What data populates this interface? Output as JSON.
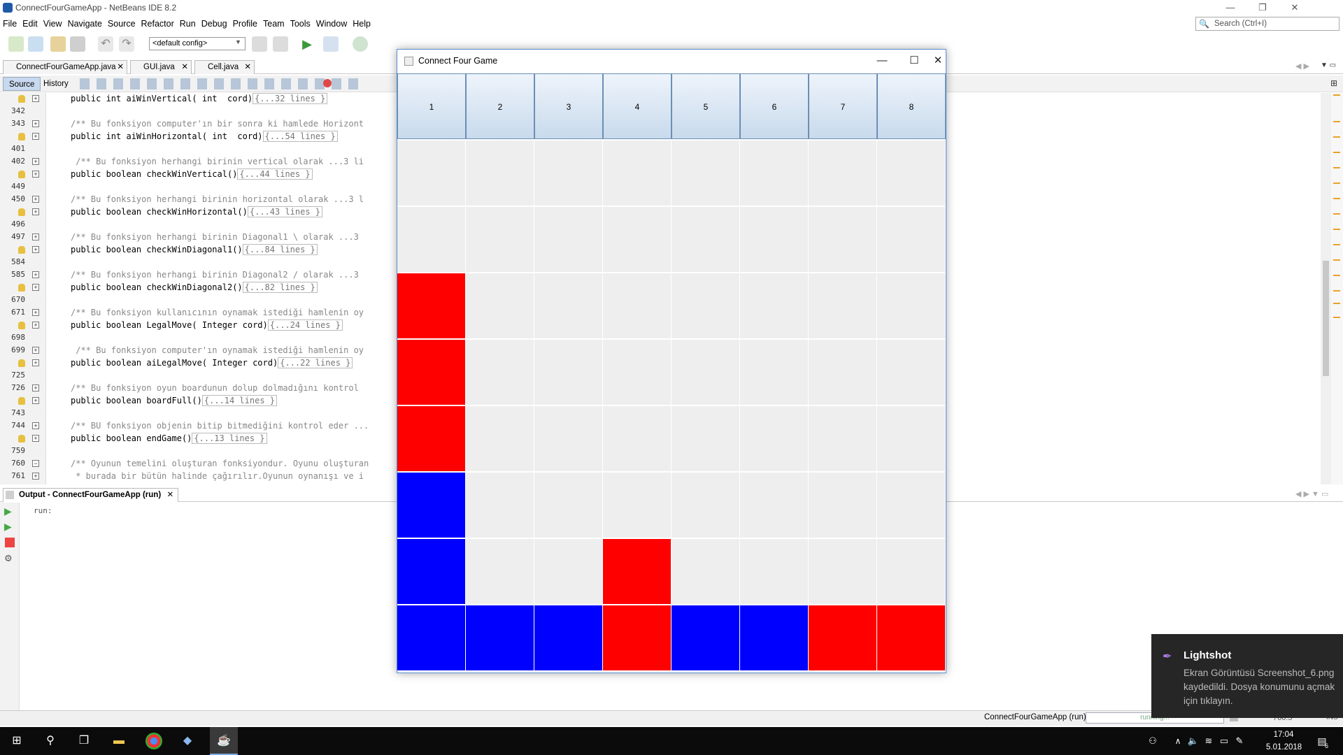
{
  "ide": {
    "title": "ConnectFourGameApp - NetBeans IDE 8.2",
    "menu": [
      "File",
      "Edit",
      "View",
      "Navigate",
      "Source",
      "Refactor",
      "Run",
      "Debug",
      "Profile",
      "Team",
      "Tools",
      "Window",
      "Help"
    ],
    "search_placeholder": "Search (Ctrl+I)",
    "config": "<default config>",
    "file_tabs": [
      "ConnectFourGameApp.java",
      "GUI.java",
      "Cell.java"
    ],
    "editor_tabs": [
      "Source",
      "History"
    ],
    "code_lines": [
      {
        "n": "",
        "kind": "method",
        "text": "public int aiWinVertical( int  cord)",
        "fold": "{...32 lines }"
      },
      {
        "n": "342",
        "kind": "blank"
      },
      {
        "n": "343",
        "kind": "comment",
        "text": "/** Bu fonksiyon computer'ın bir sonra ki hamlede Horizont"
      },
      {
        "n": "",
        "kind": "method",
        "text": "public int aiWinHorizontal( int  cord)",
        "fold": "{...54 lines }"
      },
      {
        "n": "401",
        "kind": "blank"
      },
      {
        "n": "402",
        "kind": "comment",
        "text": " /** Bu fonksiyon herhangi birinin vertical olarak ...3 li"
      },
      {
        "n": "",
        "kind": "method",
        "text": "public boolean checkWinVertical()",
        "fold": "{...44 lines }"
      },
      {
        "n": "449",
        "kind": "blank"
      },
      {
        "n": "450",
        "kind": "comment",
        "text": "/** Bu fonksiyon herhangi birinin horizontal olarak ...3 l"
      },
      {
        "n": "",
        "kind": "method",
        "text": "public boolean checkWinHorizontal()",
        "fold": "{...43 lines }"
      },
      {
        "n": "496",
        "kind": "blank"
      },
      {
        "n": "497",
        "kind": "comment",
        "text": "/** Bu fonksiyon herhangi birinin Diagonal1 \\ olarak ...3"
      },
      {
        "n": "",
        "kind": "method",
        "text": "public boolean checkWinDiagonal1()",
        "fold": "{...84 lines }"
      },
      {
        "n": "584",
        "kind": "blank"
      },
      {
        "n": "585",
        "kind": "comment",
        "text": "/** Bu fonksiyon herhangi birinin Diagonal2 / olarak ...3"
      },
      {
        "n": "",
        "kind": "method",
        "text": "public boolean checkWinDiagonal2()",
        "fold": "{...82 lines }"
      },
      {
        "n": "670",
        "kind": "blank"
      },
      {
        "n": "671",
        "kind": "comment",
        "text": "/** Bu fonksiyon kullanıcının oynamak istediği hamlenin oy"
      },
      {
        "n": "",
        "kind": "method",
        "text": "public boolean LegalMove( Integer cord)",
        "fold": "{...24 lines }"
      },
      {
        "n": "698",
        "kind": "blank"
      },
      {
        "n": "699",
        "kind": "comment",
        "text": " /** Bu fonksiyon computer'ın oynamak istediği hamlenin oy"
      },
      {
        "n": "",
        "kind": "method",
        "text": "public boolean aiLegalMove( Integer cord)",
        "fold": "{...22 lines }"
      },
      {
        "n": "725",
        "kind": "blank"
      },
      {
        "n": "726",
        "kind": "comment",
        "text": "/** Bu fonksiyon oyun boardunun dolup dolmadığını kontrol"
      },
      {
        "n": "",
        "kind": "method",
        "text": "public boolean boardFull()",
        "fold": "{...14 lines }"
      },
      {
        "n": "743",
        "kind": "blank"
      },
      {
        "n": "744",
        "kind": "comment",
        "text": "/** BU fonksiyon objenin bitip bitmediğini kontrol eder ..."
      },
      {
        "n": "",
        "kind": "method",
        "text": "public boolean endGame()",
        "fold": "{...13 lines }"
      },
      {
        "n": "759",
        "kind": "blank"
      },
      {
        "n": "760",
        "kind": "comment",
        "text": "/** Oyunun temelini oluşturan fonksiyondur. Oyunu oluşturan"
      },
      {
        "n": "761",
        "kind": "comment",
        "text": " * burada bir bütün halinde çağırılır.Oyunun oynanışı ve i"
      }
    ],
    "output_tab": "Output - ConnectFourGameApp (run)",
    "output_text": "run:",
    "status_project": "ConnectFourGameApp (run)",
    "status_progress": "running...",
    "status_pos": "760:5",
    "status_mode": "INS"
  },
  "game": {
    "title": "Connect Four Game",
    "columns": [
      "1",
      "2",
      "3",
      "4",
      "5",
      "6",
      "7",
      "8"
    ],
    "grid": [
      [
        "E",
        "E",
        "E",
        "E",
        "E",
        "E",
        "E",
        "E"
      ],
      [
        "E",
        "E",
        "E",
        "E",
        "E",
        "E",
        "E",
        "E"
      ],
      [
        "R",
        "E",
        "E",
        "E",
        "E",
        "E",
        "E",
        "E"
      ],
      [
        "R",
        "E",
        "E",
        "E",
        "E",
        "E",
        "E",
        "E"
      ],
      [
        "R",
        "E",
        "E",
        "E",
        "E",
        "E",
        "E",
        "E"
      ],
      [
        "B",
        "E",
        "E",
        "E",
        "E",
        "E",
        "E",
        "E"
      ],
      [
        "B",
        "E",
        "E",
        "R",
        "E",
        "E",
        "E",
        "E"
      ],
      [
        "B",
        "B",
        "B",
        "R",
        "B",
        "B",
        "R",
        "R"
      ]
    ],
    "colors": {
      "R": "#ff0000",
      "B": "#0000ff",
      "E": "#eeeeee"
    }
  },
  "toast": {
    "app": "Lightshot",
    "message": "Ekran Görüntüsü Screenshot_6.png kaydedildi. Dosya konumunu açmak için tıklayın."
  },
  "taskbar": {
    "time": "17:04",
    "date": "5.01.2018",
    "notifications": "6"
  }
}
